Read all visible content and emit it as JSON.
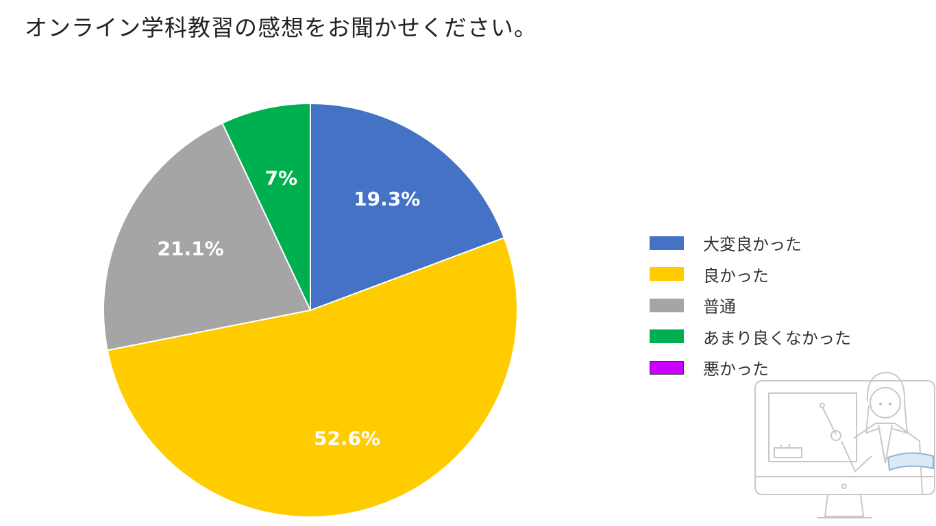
{
  "title": "オンライン学科教習の感想をお聞かせください。",
  "chart_data": {
    "type": "pie",
    "title": "オンライン学科教習の感想をお聞かせください。",
    "start_angle_deg": 0,
    "direction": "clockwise",
    "legend_position": "right",
    "slices": [
      {
        "label": "大変良かった",
        "value": 19.3,
        "display": "19.3%",
        "color": "#4472C4"
      },
      {
        "label": "良かった",
        "value": 52.6,
        "display": "52.6%",
        "color": "#FFCC00"
      },
      {
        "label": "普通",
        "value": 21.1,
        "display": "21.1%",
        "color": "#A5A5A5"
      },
      {
        "label": "あまり良くなかった",
        "value": 7.0,
        "display": "7%",
        "color": "#00B050"
      },
      {
        "label": "悪かった",
        "value": 0.0,
        "display": "",
        "color": "#CC00FF"
      }
    ]
  },
  "legend": {
    "items": [
      {
        "label": "大変良かった",
        "color": "#4472C4"
      },
      {
        "label": "良かった",
        "color": "#FFCC00"
      },
      {
        "label": "普通",
        "color": "#A5A5A5"
      },
      {
        "label": "あまり良くなかった",
        "color": "#00B050"
      },
      {
        "label": "悪かった",
        "color": "#CC00FF"
      }
    ]
  },
  "illustration": {
    "name": "teacher-at-monitor-illustration"
  }
}
